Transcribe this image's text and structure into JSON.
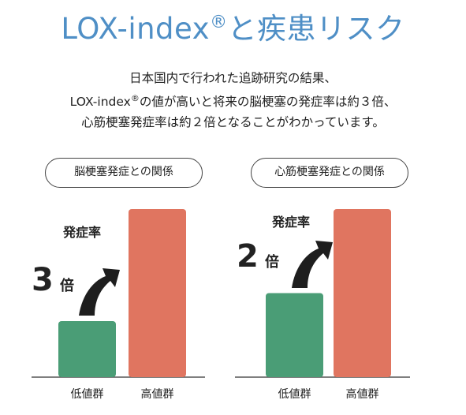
{
  "header": {
    "title_main": "LOX-index",
    "title_reg": "®",
    "title_rest": "と疾患リスク"
  },
  "lead": {
    "line1": "日本国内で行われた追跡研究の結果、",
    "line2_a": "LOX-index",
    "line2_reg": "®",
    "line2_b": "の値が高いと将来の脳梗塞の発症率は約３倍、",
    "line3": "心筋梗塞発症率は約２倍となることがわかっています。"
  },
  "colors": {
    "title": "#4f8fc6",
    "low_bar": "#4a9d76",
    "high_bar": "#e07560",
    "arrow": "#1e1e1e"
  },
  "chart_data": [
    {
      "type": "bar",
      "title": "脳梗塞発症との関係",
      "categories": [
        "低値群",
        "高値群"
      ],
      "values": [
        1,
        3
      ],
      "annotation": {
        "label": "発症率",
        "multiplier": "3",
        "unit": "倍"
      },
      "ylim": [
        0,
        3.2
      ]
    },
    {
      "type": "bar",
      "title": "心筋梗塞発症との関係",
      "categories": [
        "低値群",
        "高値群"
      ],
      "values": [
        1,
        2
      ],
      "annotation": {
        "label": "発症率",
        "multiplier": "2",
        "unit": "倍"
      },
      "ylim": [
        0,
        2.2
      ]
    }
  ]
}
